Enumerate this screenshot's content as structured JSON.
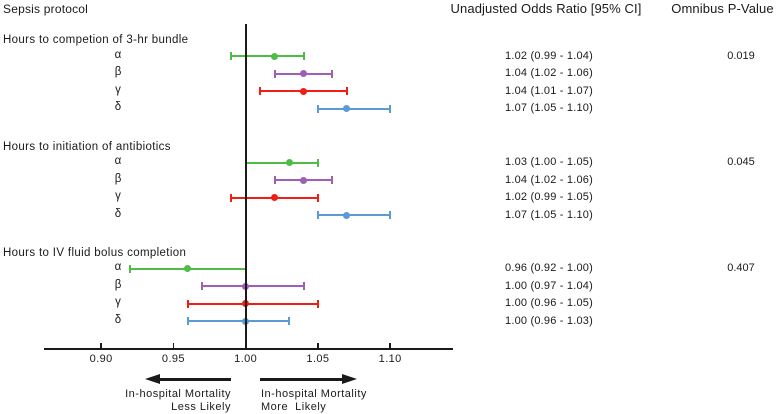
{
  "figure": {
    "title": "Sepsis protocol",
    "or_column_header": "Unadjusted Odds Ratio [95% CI]",
    "p_column_header": "Omnibus P-Value"
  },
  "chart_data": {
    "type": "forest",
    "title": "Sepsis protocol",
    "x_axis": {
      "tick_labels": [
        "0.90",
        "0.95",
        "1.00",
        "1.05",
        "1.10"
      ],
      "tick_values": [
        0.9,
        0.95,
        1.0,
        1.05,
        1.1
      ],
      "range": [
        0.861,
        1.144
      ],
      "reference_line": 1.0,
      "grid": false
    },
    "direction_annotations": {
      "left_line1": "In-hospital Mortality",
      "left_line2": "Less Likely",
      "right_line1": "In-hospital Mortality",
      "right_line2": "More  Likely"
    },
    "series_colors": {
      "alpha": "#4fbc48",
      "beta": "#a05fb5",
      "gamma": "#ef2013",
      "delta": "#5b9bd5"
    },
    "groups": [
      {
        "label": "Hours to competion of 3-hr bundle",
        "omnibus_p_value": "0.019",
        "rows": [
          {
            "label": "α",
            "series": "alpha",
            "or": 1.02,
            "ci_low": 0.99,
            "ci_high": 1.04,
            "or_text": "1.02 (0.99 - 1.04)"
          },
          {
            "label": "β",
            "series": "beta",
            "or": 1.04,
            "ci_low": 1.02,
            "ci_high": 1.06,
            "or_text": "1.04 (1.02 - 1.06)"
          },
          {
            "label": "γ",
            "series": "gamma",
            "or": 1.04,
            "ci_low": 1.01,
            "ci_high": 1.07,
            "or_text": "1.04 (1.01 - 1.07)"
          },
          {
            "label": "δ",
            "series": "delta",
            "or": 1.07,
            "ci_low": 1.05,
            "ci_high": 1.1,
            "or_text": "1.07 (1.05 - 1.10)"
          }
        ]
      },
      {
        "label": "Hours to initiation of antibiotics",
        "omnibus_p_value": "0.045",
        "rows": [
          {
            "label": "α",
            "series": "alpha",
            "or": 1.03,
            "ci_low": 1.0,
            "ci_high": 1.05,
            "or_text": "1.03 (1.00 - 1.05)"
          },
          {
            "label": "β",
            "series": "beta",
            "or": 1.04,
            "ci_low": 1.02,
            "ci_high": 1.06,
            "or_text": "1.04 (1.02 - 1.06)"
          },
          {
            "label": "γ",
            "series": "gamma",
            "or": 1.02,
            "ci_low": 0.99,
            "ci_high": 1.05,
            "or_text": "1.02 (0.99 - 1.05)"
          },
          {
            "label": "δ",
            "series": "delta",
            "or": 1.07,
            "ci_low": 1.05,
            "ci_high": 1.1,
            "or_text": "1.07 (1.05 - 1.10)"
          }
        ]
      },
      {
        "label": "Hours to IV fluid bolus completion",
        "omnibus_p_value": "0.407",
        "rows": [
          {
            "label": "α",
            "series": "alpha",
            "or": 0.96,
            "ci_low": 0.92,
            "ci_high": 1.0,
            "or_text": "0.96 (0.92 - 1.00)"
          },
          {
            "label": "β",
            "series": "beta",
            "or": 1.0,
            "ci_low": 0.97,
            "ci_high": 1.04,
            "or_text": "1.00 (0.97 - 1.04)"
          },
          {
            "label": "γ",
            "series": "gamma",
            "or": 1.0,
            "ci_low": 0.96,
            "ci_high": 1.05,
            "or_text": "1.00 (0.96 - 1.05)"
          },
          {
            "label": "δ",
            "series": "delta",
            "or": 1.0,
            "ci_low": 0.96,
            "ci_high": 1.03,
            "or_text": "1.00 (0.96 - 1.03)"
          }
        ]
      }
    ]
  }
}
